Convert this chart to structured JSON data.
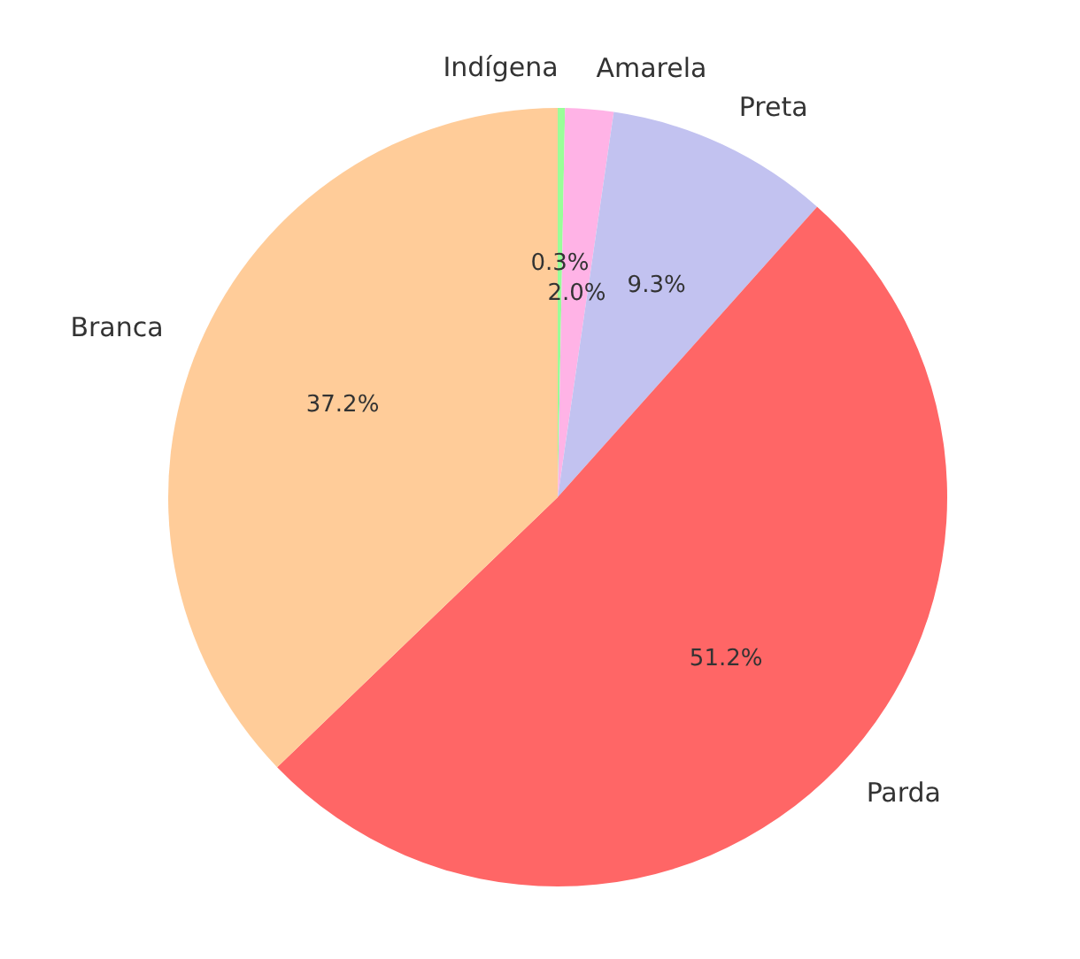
{
  "chart_data": {
    "type": "pie",
    "categories": [
      "Indígena",
      "Amarela",
      "Preta",
      "Parda",
      "Branca"
    ],
    "values": [
      0.3,
      2.0,
      9.3,
      51.2,
      37.2
    ],
    "colors": [
      "#99ff99",
      "#ffb3e6",
      "#c2c2f0",
      "#ff6666",
      "#ffcc99"
    ],
    "value_labels": [
      "0.3%",
      "2.0%",
      "9.3%",
      "51.2%",
      "37.2%"
    ],
    "legend": false
  }
}
